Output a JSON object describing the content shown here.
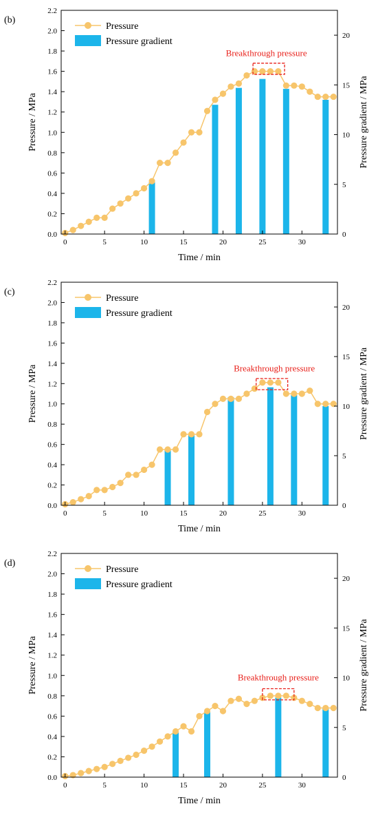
{
  "colors": {
    "pressure": "#f7c56b",
    "gradient": "#1cb5ea",
    "annotation": "#e8201a"
  },
  "chart_data": [
    {
      "type": "bar+line",
      "panel_label": "(b)",
      "xlabel": "Time / min",
      "ylabel": "Pressure / MPa",
      "y2label": "Pressure gradient / MPa",
      "xlim": [
        -0.5,
        34.5
      ],
      "ylim": [
        0,
        2.2
      ],
      "y2lim": [
        0,
        22.5
      ],
      "xticks": [
        0,
        5,
        10,
        15,
        20,
        25,
        30
      ],
      "yticks": [
        "0.0",
        "0.2",
        "0.4",
        "0.6",
        "0.8",
        "1.0",
        "1.2",
        "1.4",
        "1.6",
        "1.8",
        "2.0",
        "2.2"
      ],
      "y2ticks": [
        0,
        5,
        10,
        15,
        20
      ],
      "legend": {
        "pressure": "Pressure",
        "gradient": "Pressure gradient",
        "position": "top-left"
      },
      "pressure": {
        "x": [
          0,
          1,
          2,
          3,
          4,
          5,
          6,
          7,
          8,
          9,
          10,
          11,
          12,
          13,
          14,
          15,
          16,
          17,
          18,
          19,
          20,
          21,
          22,
          23,
          24,
          25,
          26,
          27,
          28,
          29,
          30,
          31,
          32,
          33,
          34
        ],
        "y": [
          0.01,
          0.04,
          0.08,
          0.12,
          0.16,
          0.16,
          0.25,
          0.3,
          0.35,
          0.4,
          0.45,
          0.52,
          0.7,
          0.7,
          0.8,
          0.9,
          1.0,
          1.0,
          1.21,
          1.32,
          1.38,
          1.45,
          1.48,
          1.56,
          1.6,
          1.6,
          1.6,
          1.6,
          1.46,
          1.46,
          1.45,
          1.4,
          1.35,
          1.35,
          1.35
        ]
      },
      "gradient": {
        "x": [
          11,
          19,
          22,
          25,
          28,
          33
        ],
        "y": [
          5.2,
          13.0,
          14.7,
          15.6,
          14.6,
          13.5
        ]
      },
      "annotation": {
        "text": "Breakthrough pressure",
        "x0": 23.8,
        "x1": 27.8,
        "y0": 1.57,
        "y1": 1.68,
        "text_x": 25.5,
        "text_y": 1.75
      }
    },
    {
      "type": "bar+line",
      "panel_label": "(c)",
      "xlabel": "Time / min",
      "ylabel": "Pressure / MPa",
      "y2label": "Pressure gradient / MPa",
      "xlim": [
        -0.5,
        34.5
      ],
      "ylim": [
        0,
        2.2
      ],
      "y2lim": [
        0,
        22.5
      ],
      "xticks": [
        0,
        5,
        10,
        15,
        20,
        25,
        30
      ],
      "yticks": [
        "0.0",
        "0.2",
        "0.4",
        "0.6",
        "0.8",
        "1.0",
        "1.2",
        "1.4",
        "1.6",
        "1.8",
        "2.0",
        "2.2"
      ],
      "y2ticks": [
        0,
        5,
        10,
        15,
        20
      ],
      "legend": {
        "pressure": "Pressure",
        "gradient": "Pressure gradient",
        "position": "top-left"
      },
      "pressure": {
        "x": [
          0,
          1,
          2,
          3,
          4,
          5,
          6,
          7,
          8,
          9,
          10,
          11,
          12,
          13,
          14,
          15,
          16,
          17,
          18,
          19,
          20,
          21,
          22,
          23,
          24,
          25,
          26,
          27,
          28,
          29,
          30,
          31,
          32,
          33,
          34
        ],
        "y": [
          0.01,
          0.03,
          0.06,
          0.09,
          0.15,
          0.15,
          0.18,
          0.22,
          0.3,
          0.3,
          0.35,
          0.4,
          0.55,
          0.55,
          0.55,
          0.7,
          0.7,
          0.7,
          0.92,
          1.0,
          1.05,
          1.05,
          1.05,
          1.1,
          1.15,
          1.21,
          1.21,
          1.21,
          1.1,
          1.1,
          1.1,
          1.13,
          1.0,
          1.0,
          1.0
        ]
      },
      "gradient": {
        "x": [
          13,
          16,
          21,
          26,
          29,
          33
        ],
        "y": [
          5.6,
          7.2,
          10.9,
          11.9,
          11.1,
          10.0
        ]
      },
      "annotation": {
        "text": "Breakthrough pressure",
        "x0": 24.2,
        "x1": 28.2,
        "y0": 1.14,
        "y1": 1.25,
        "text_x": 26.5,
        "text_y": 1.32
      }
    },
    {
      "type": "bar+line",
      "panel_label": "(d)",
      "xlabel": "Time / min",
      "ylabel": "Pressure / MPa",
      "y2label": "Pressure gradient / MPa",
      "xlim": [
        -0.5,
        34.5
      ],
      "ylim": [
        0,
        2.2
      ],
      "y2lim": [
        0,
        22.5
      ],
      "xticks": [
        0,
        5,
        10,
        15,
        20,
        25,
        30
      ],
      "yticks": [
        "0.0",
        "0.2",
        "0.4",
        "0.6",
        "0.8",
        "1.0",
        "1.2",
        "1.4",
        "1.6",
        "1.8",
        "2.0",
        "2.2"
      ],
      "y2ticks": [
        0,
        5,
        10,
        15,
        20
      ],
      "legend": {
        "pressure": "Pressure",
        "gradient": "Pressure gradient",
        "position": "top-left"
      },
      "pressure": {
        "x": [
          0,
          1,
          2,
          3,
          4,
          5,
          6,
          7,
          8,
          9,
          10,
          11,
          12,
          13,
          14,
          15,
          16,
          17,
          18,
          19,
          20,
          21,
          22,
          23,
          24,
          25,
          26,
          27,
          28,
          29,
          30,
          31,
          32,
          33,
          34
        ],
        "y": [
          0.01,
          0.02,
          0.04,
          0.06,
          0.08,
          0.1,
          0.13,
          0.16,
          0.19,
          0.22,
          0.26,
          0.3,
          0.35,
          0.4,
          0.45,
          0.5,
          0.45,
          0.6,
          0.65,
          0.7,
          0.65,
          0.75,
          0.77,
          0.72,
          0.75,
          0.78,
          0.8,
          0.8,
          0.8,
          0.78,
          0.75,
          0.72,
          0.68,
          0.68,
          0.68
        ]
      },
      "gradient": {
        "x": [
          14,
          18,
          27,
          33
        ],
        "y": [
          4.5,
          6.6,
          8.0,
          7.0
        ]
      },
      "annotation": {
        "text": "Breakthrough pressure",
        "x0": 25.0,
        "x1": 29.0,
        "y0": 0.76,
        "y1": 0.87,
        "text_x": 27.0,
        "text_y": 0.95
      }
    }
  ]
}
